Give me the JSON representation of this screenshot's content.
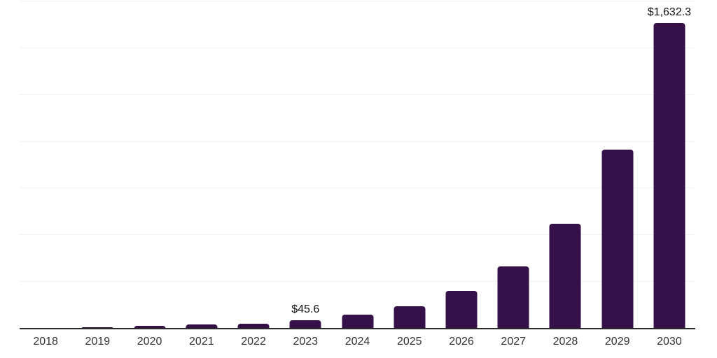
{
  "chart_data": {
    "type": "bar",
    "title": "",
    "xlabel": "",
    "ylabel": "",
    "categories": [
      "2018",
      "2019",
      "2020",
      "2021",
      "2022",
      "2023",
      "2024",
      "2025",
      "2026",
      "2027",
      "2028",
      "2029",
      "2030"
    ],
    "values": [
      3.2,
      8.6,
      16.0,
      21.5,
      27.3,
      45.6,
      74.9,
      118.5,
      201.6,
      333.6,
      560.2,
      958.1,
      1632.3
    ],
    "value_labels": [
      {
        "category": "2023",
        "text": "$45.6"
      },
      {
        "category": "2030",
        "text": "$1,632.3"
      }
    ],
    "ylim": [
      0,
      1750
    ],
    "gridline_interval": 250,
    "grid": true,
    "legend_position": "none",
    "colors": {
      "bar": "#361149",
      "axis_line": "#2b2b2b",
      "gridline": "#f2f2f2",
      "tick_label": "#333333",
      "value_label": "#111111",
      "background": "#ffffff"
    }
  }
}
